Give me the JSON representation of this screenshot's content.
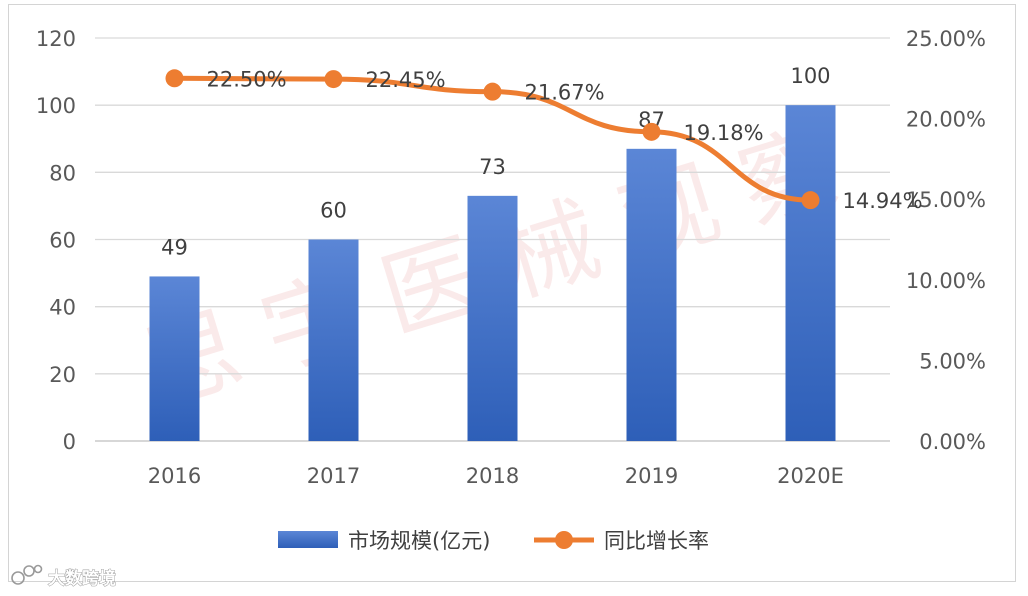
{
  "chart_data": {
    "type": "bar+line",
    "categories": [
      "2016",
      "2017",
      "2018",
      "2019",
      "2020E"
    ],
    "series": [
      {
        "name": "市场规模(亿元)",
        "type": "bar",
        "axis": "left",
        "values": [
          49,
          60,
          73,
          87,
          100
        ],
        "labels": [
          "49",
          "60",
          "73",
          "87",
          "100"
        ],
        "color": "#4472c4"
      },
      {
        "name": "同比增长率",
        "type": "line",
        "axis": "right",
        "values": [
          22.5,
          22.45,
          21.67,
          19.18,
          14.94
        ],
        "labels": [
          "22.50%",
          "22.45%",
          "21.67%",
          "19.18%",
          "14.94%"
        ],
        "color": "#ed7d31"
      }
    ],
    "y_left": {
      "ylim": [
        0,
        120
      ],
      "ticks": [
        "0",
        "20",
        "40",
        "60",
        "80",
        "100",
        "120"
      ]
    },
    "y_right": {
      "ylim": [
        0,
        25
      ],
      "ticks": [
        "0.00%",
        "5.00%",
        "10.00%",
        "15.00%",
        "20.00%",
        "25.00%"
      ]
    },
    "grid": true,
    "legend_position": "bottom"
  },
  "watermark": "思宇医械观察",
  "logo_text": "大数跨境",
  "colors": {
    "bar_top": "#5b86d6",
    "bar_bottom": "#2e5fb8",
    "line": "#ed7d31",
    "grid": "#d9d9d9",
    "axis": "#bfbfbf"
  }
}
